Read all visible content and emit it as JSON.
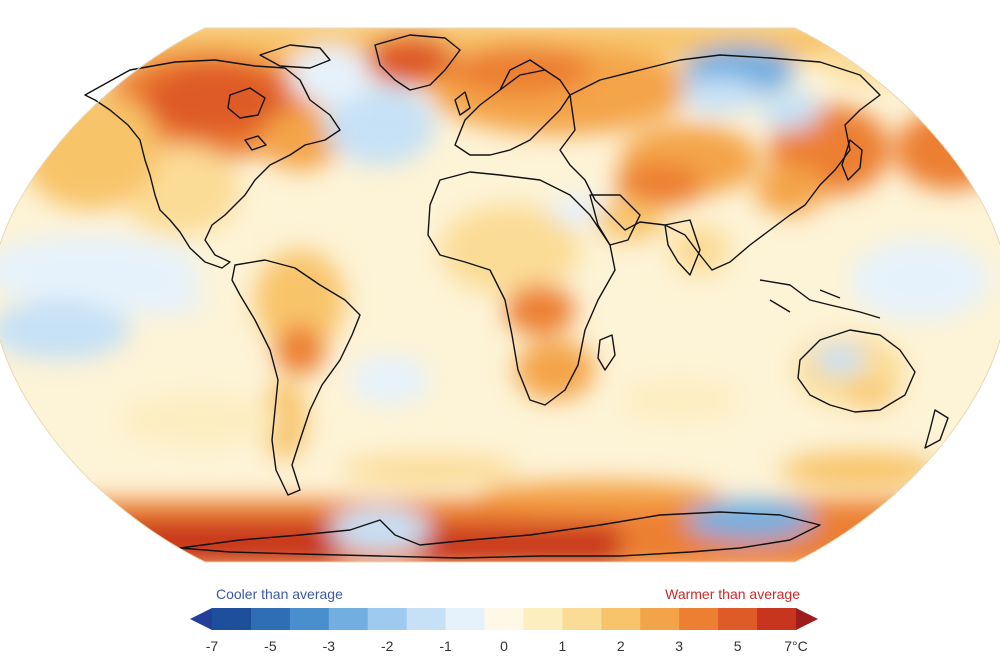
{
  "legend": {
    "cool_label": "Cooler than average",
    "warm_label": "Warmer than average",
    "ticks": [
      "-7",
      "-5",
      "-3",
      "-2",
      "-1",
      "0",
      "1",
      "2",
      "3",
      "5",
      "7°C"
    ],
    "steps": [
      "#1e4f9c",
      "#2f6db5",
      "#4a8fcd",
      "#72aee0",
      "#9dcaee",
      "#c6e1f6",
      "#e6f2fb",
      "#fef9e6",
      "#fdeec0",
      "#fbdc96",
      "#f8c46b",
      "#f4a448",
      "#ec7f31",
      "#de5a27",
      "#c8351f"
    ],
    "cool_end": "#22409a",
    "warm_end": "#9e1c1c"
  },
  "colors": {
    "coastline": "#111111",
    "ocean_base": "#fdf3d6"
  }
}
